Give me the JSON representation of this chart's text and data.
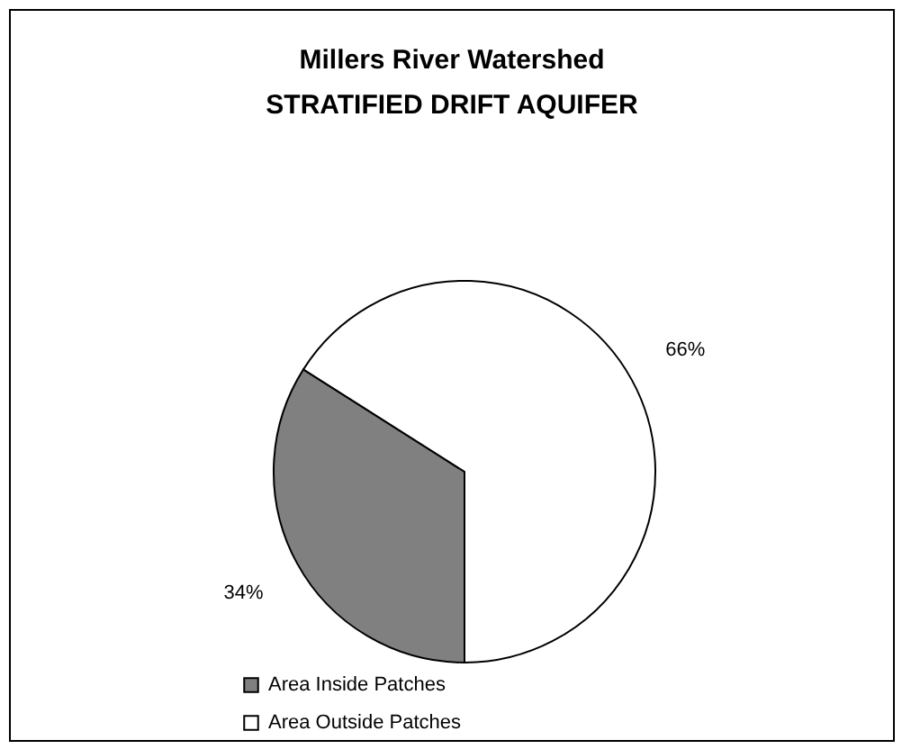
{
  "chart_data": {
    "type": "pie",
    "title": "Millers River Watershed",
    "subtitle": "STRATIFIED DRIFT AQUIFER",
    "categories": [
      "Area Inside Patches",
      "Area Outside Patches"
    ],
    "values": [
      34,
      66
    ],
    "colors": [
      "#808080",
      "#ffffff"
    ],
    "value_labels": [
      "34%",
      "66%"
    ],
    "legend": "bottom"
  }
}
